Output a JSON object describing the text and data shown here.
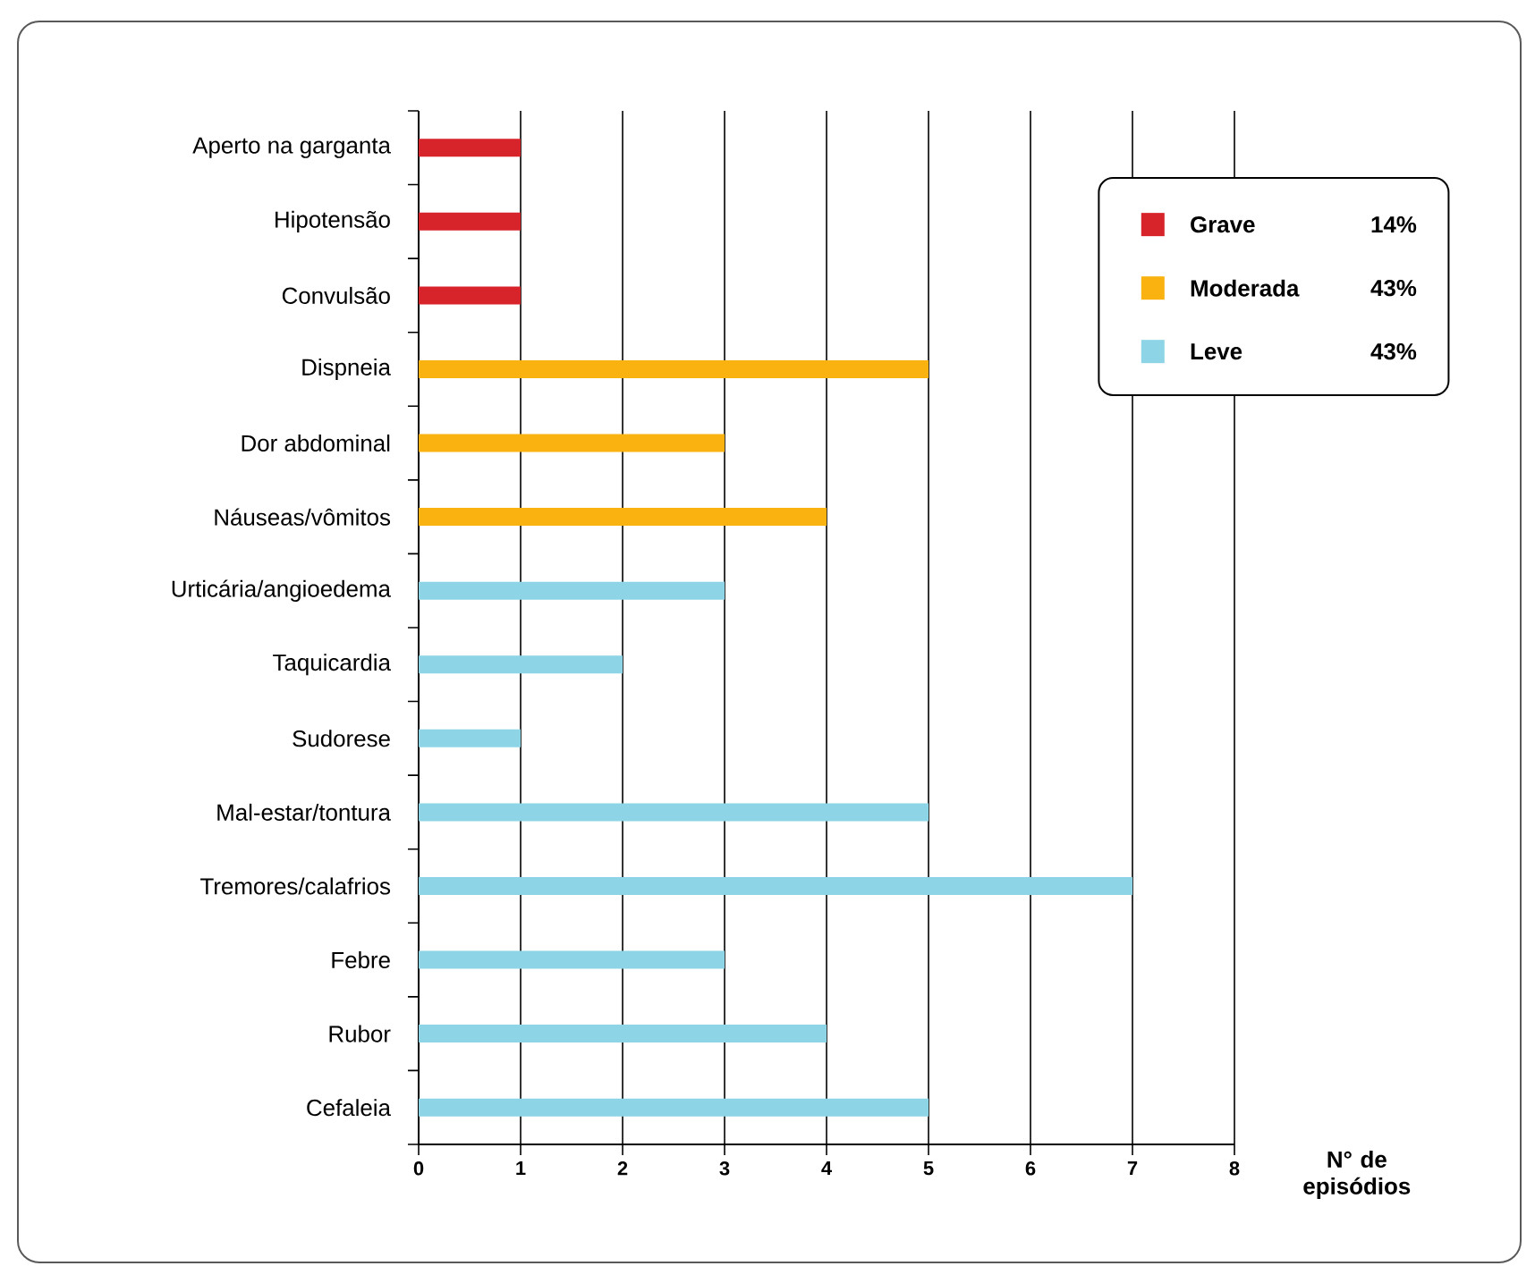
{
  "chart_data": {
    "type": "bar",
    "orientation": "horizontal",
    "categories": [
      "Aperto na garganta",
      "Hipotensão",
      "Convulsão",
      "Dispneia",
      "Dor abdominal",
      "Náuseas/vômitos",
      "Urticária/angioedema",
      "Taquicardia",
      "Sudorese",
      "Mal-estar/tontura",
      "Tremores/calafrios",
      "Febre",
      "Rubor",
      "Cefaleia"
    ],
    "series": [
      {
        "name": "Grave",
        "color": "#d7232a",
        "values": [
          1,
          1,
          1,
          null,
          null,
          null,
          null,
          null,
          null,
          null,
          null,
          null,
          null,
          null
        ]
      },
      {
        "name": "Moderada",
        "color": "#f9b20f",
        "values": [
          null,
          null,
          null,
          5,
          3,
          4,
          null,
          null,
          null,
          null,
          null,
          null,
          null,
          null
        ]
      },
      {
        "name": "Leve",
        "color": "#8dd5e6",
        "values": [
          null,
          null,
          null,
          null,
          null,
          null,
          3,
          2,
          1,
          5,
          7,
          3,
          4,
          5
        ]
      }
    ],
    "annotations": [
      "14%",
      "43%",
      "43%"
    ],
    "xlabel": "N° de episódios",
    "xlim": [
      0,
      8
    ],
    "xticks": [
      0,
      1,
      2,
      3,
      4,
      5,
      6,
      7,
      8
    ],
    "grid": "x",
    "legend": "top right"
  }
}
